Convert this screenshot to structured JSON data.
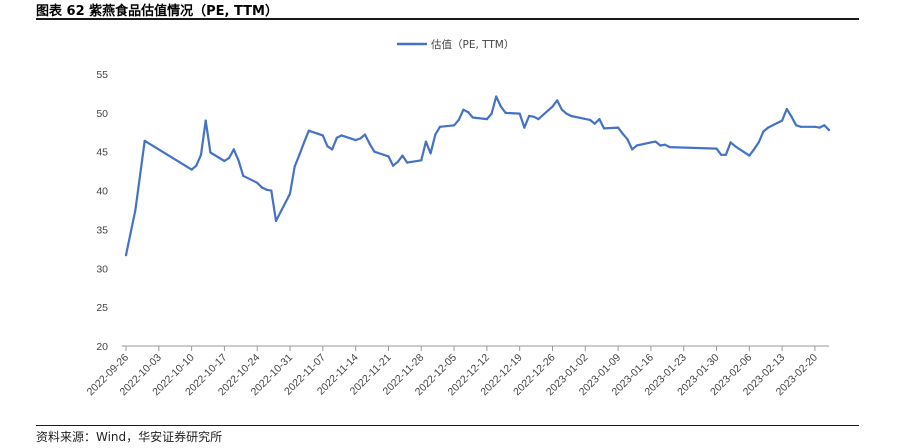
{
  "figure": {
    "title": "图表 62  紫燕食品估值情况（PE, TTM）",
    "source": "资料来源：Wind，华安证券研究所"
  },
  "chart_data": {
    "type": "line",
    "title": "",
    "xlabel": "",
    "ylabel": "",
    "ylim": [
      20,
      55
    ],
    "yticks": [
      "20",
      "25",
      "30",
      "35",
      "40",
      "45",
      "50",
      "55"
    ],
    "xlim": [
      "2022-09-26",
      "2023-02-23"
    ],
    "xticks": [
      "2022-09-26",
      "2022-10-03",
      "2022-10-10",
      "2022-10-17",
      "2022-10-24",
      "2022-10-31",
      "2022-11-07",
      "2022-11-14",
      "2022-11-21",
      "2022-11-28",
      "2022-12-05",
      "2022-12-12",
      "2022-12-19",
      "2022-12-26",
      "2023-01-02",
      "2023-01-09",
      "2023-01-16",
      "2023-01-23",
      "2023-01-30",
      "2023-02-06",
      "2023-02-13",
      "2023-02-20"
    ],
    "grid": false,
    "legend_position": "top-center",
    "color": "#4472C4",
    "series": [
      {
        "name": "估值（PE, TTM）",
        "points": [
          [
            "2022-09-26",
            31.7
          ],
          [
            "2022-09-28",
            37.5
          ],
          [
            "2022-09-30",
            46.4
          ],
          [
            "2022-10-10",
            42.7
          ],
          [
            "2022-10-11",
            43.2
          ],
          [
            "2022-10-12",
            44.6
          ],
          [
            "2022-10-13",
            49.0
          ],
          [
            "2022-10-14",
            44.9
          ],
          [
            "2022-10-17",
            43.8
          ],
          [
            "2022-10-18",
            44.2
          ],
          [
            "2022-10-19",
            45.3
          ],
          [
            "2022-10-20",
            43.9
          ],
          [
            "2022-10-21",
            41.9
          ],
          [
            "2022-10-24",
            41.0
          ],
          [
            "2022-10-25",
            40.4
          ],
          [
            "2022-10-26",
            40.1
          ],
          [
            "2022-10-27",
            40.0
          ],
          [
            "2022-10-28",
            36.1
          ],
          [
            "2022-10-31",
            39.6
          ],
          [
            "2022-11-01",
            43.1
          ],
          [
            "2022-11-02",
            44.6
          ],
          [
            "2022-11-03",
            46.2
          ],
          [
            "2022-11-04",
            47.7
          ],
          [
            "2022-11-07",
            47.1
          ],
          [
            "2022-11-08",
            45.7
          ],
          [
            "2022-11-09",
            45.3
          ],
          [
            "2022-11-10",
            46.8
          ],
          [
            "2022-11-11",
            47.1
          ],
          [
            "2022-11-14",
            46.5
          ],
          [
            "2022-11-15",
            46.7
          ],
          [
            "2022-11-16",
            47.2
          ],
          [
            "2022-11-17",
            46.0
          ],
          [
            "2022-11-18",
            45.0
          ],
          [
            "2022-11-21",
            44.4
          ],
          [
            "2022-11-22",
            43.2
          ],
          [
            "2022-11-23",
            43.7
          ],
          [
            "2022-11-24",
            44.5
          ],
          [
            "2022-11-25",
            43.6
          ],
          [
            "2022-11-28",
            43.9
          ],
          [
            "2022-11-29",
            46.3
          ],
          [
            "2022-11-30",
            44.8
          ],
          [
            "2022-12-01",
            47.2
          ],
          [
            "2022-12-02",
            48.2
          ],
          [
            "2022-12-05",
            48.4
          ],
          [
            "2022-12-06",
            49.1
          ],
          [
            "2022-12-07",
            50.4
          ],
          [
            "2022-12-08",
            50.1
          ],
          [
            "2022-12-09",
            49.4
          ],
          [
            "2022-12-12",
            49.2
          ],
          [
            "2022-12-13",
            49.9
          ],
          [
            "2022-12-14",
            52.1
          ],
          [
            "2022-12-15",
            50.8
          ],
          [
            "2022-12-16",
            50.0
          ],
          [
            "2022-12-19",
            49.9
          ],
          [
            "2022-12-20",
            48.1
          ],
          [
            "2022-12-21",
            49.6
          ],
          [
            "2022-12-22",
            49.5
          ],
          [
            "2022-12-23",
            49.2
          ],
          [
            "2022-12-26",
            50.8
          ],
          [
            "2022-12-27",
            51.6
          ],
          [
            "2022-12-28",
            50.4
          ],
          [
            "2022-12-29",
            49.9
          ],
          [
            "2022-12-30",
            49.6
          ],
          [
            "2023-01-03",
            49.1
          ],
          [
            "2023-01-04",
            48.6
          ],
          [
            "2023-01-05",
            49.2
          ],
          [
            "2023-01-06",
            48.0
          ],
          [
            "2023-01-09",
            48.1
          ],
          [
            "2023-01-10",
            47.3
          ],
          [
            "2023-01-11",
            46.6
          ],
          [
            "2023-01-12",
            45.3
          ],
          [
            "2023-01-13",
            45.8
          ],
          [
            "2023-01-16",
            46.2
          ],
          [
            "2023-01-17",
            46.3
          ],
          [
            "2023-01-18",
            45.8
          ],
          [
            "2023-01-19",
            45.9
          ],
          [
            "2023-01-20",
            45.6
          ],
          [
            "2023-01-30",
            45.4
          ],
          [
            "2023-01-31",
            44.6
          ],
          [
            "2023-02-01",
            44.6
          ],
          [
            "2023-02-02",
            46.2
          ],
          [
            "2023-02-03",
            45.7
          ],
          [
            "2023-02-06",
            44.5
          ],
          [
            "2023-02-07",
            45.3
          ],
          [
            "2023-02-08",
            46.2
          ],
          [
            "2023-02-09",
            47.6
          ],
          [
            "2023-02-10",
            48.1
          ],
          [
            "2023-02-13",
            49.0
          ],
          [
            "2023-02-14",
            50.5
          ],
          [
            "2023-02-15",
            49.5
          ],
          [
            "2023-02-16",
            48.4
          ],
          [
            "2023-02-17",
            48.2
          ],
          [
            "2023-02-20",
            48.2
          ],
          [
            "2023-02-21",
            48.1
          ],
          [
            "2023-02-22",
            48.4
          ],
          [
            "2023-02-23",
            47.8
          ]
        ]
      }
    ]
  }
}
